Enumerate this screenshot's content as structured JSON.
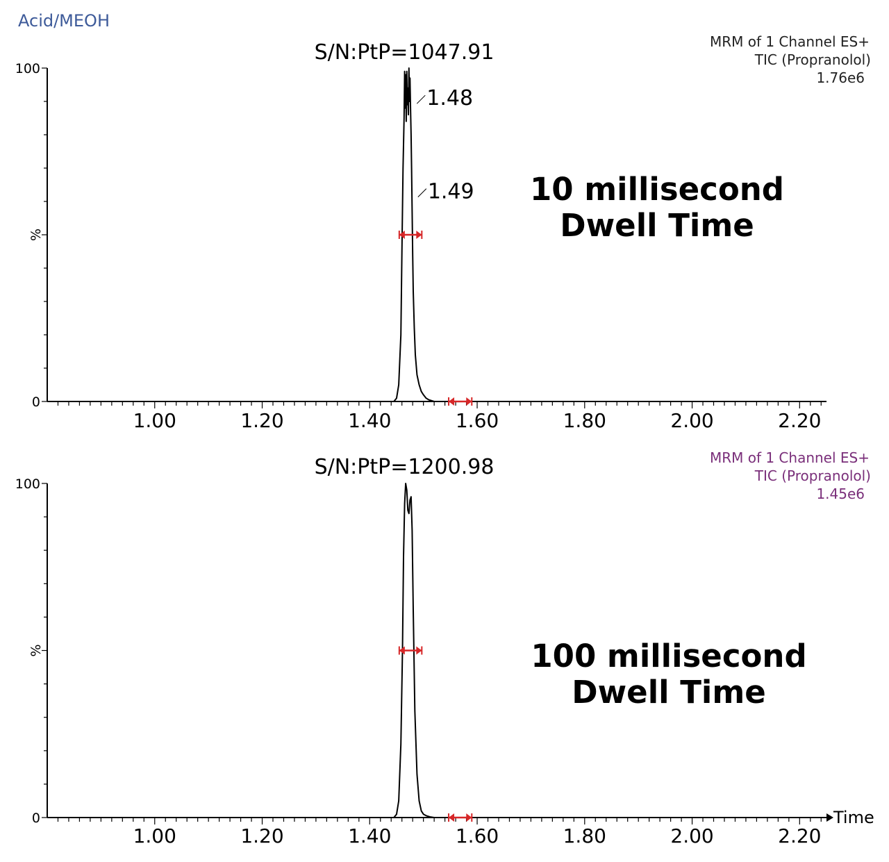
{
  "title": "Acid/MEOH",
  "x_axis_label": "Time",
  "colors": {
    "marker": "#d62728",
    "info_top": "#222222",
    "info_bottom": "#7a2f7a",
    "title": "#3d5a99"
  },
  "chart_data": [
    {
      "type": "line",
      "xlim": [
        0.8,
        2.25
      ],
      "ylim": [
        0,
        100
      ],
      "x_ticks": [
        "1.00",
        "1.20",
        "1.40",
        "1.60",
        "1.80",
        "2.00",
        "2.20"
      ],
      "y_ticks": [
        "0",
        "100"
      ],
      "ylabel": "%",
      "signal_to_noise": "S/N:PtP=1047.91",
      "info_lines": [
        "MRM of 1 Channel ES+",
        "TIC (Propranolol)",
        "1.76e6"
      ],
      "annotation": [
        "10 millisecond",
        "Dwell Time"
      ],
      "peak_labels": [
        {
          "text": "1.48",
          "x": 1.484,
          "y": 91
        },
        {
          "text": "1.49",
          "x": 1.486,
          "y": 63
        }
      ],
      "width_markers": [
        {
          "x1": 1.455,
          "x2": 1.497,
          "y": 50
        },
        {
          "x1": 1.547,
          "x2": 1.59,
          "y": 0
        }
      ],
      "series": [
        {
          "x": [
            0.8,
            1.445,
            1.45,
            1.454,
            1.458,
            1.46,
            1.462,
            1.464,
            1.465,
            1.466,
            1.467,
            1.468,
            1.469,
            1.47,
            1.471,
            1.472,
            1.473,
            1.474,
            1.475,
            1.476,
            1.477,
            1.478,
            1.479,
            1.48,
            1.481,
            1.483,
            1.485,
            1.488,
            1.492,
            1.496,
            1.5,
            1.505,
            1.51,
            1.52,
            2.25
          ],
          "y": [
            0,
            0,
            1,
            5,
            20,
            45,
            70,
            85,
            99,
            88,
            98,
            84,
            99,
            89,
            94,
            86,
            100,
            90,
            97,
            88,
            80,
            70,
            57,
            44,
            33,
            22,
            14,
            8,
            5,
            3,
            2,
            1,
            0.5,
            0,
            0
          ]
        }
      ]
    },
    {
      "type": "line",
      "xlim": [
        0.8,
        2.25
      ],
      "ylim": [
        0,
        100
      ],
      "x_ticks": [
        "1.00",
        "1.20",
        "1.40",
        "1.60",
        "1.80",
        "2.00",
        "2.20"
      ],
      "y_ticks": [
        "0",
        "100"
      ],
      "ylabel": "%",
      "signal_to_noise": "S/N:PtP=1200.98",
      "info_lines": [
        "MRM of 1 Channel ES+",
        "TIC (Propranolol)",
        "1.45e6"
      ],
      "annotation": [
        "100 millisecond",
        "Dwell Time"
      ],
      "peak_labels": [],
      "width_markers": [
        {
          "x1": 1.455,
          "x2": 1.497,
          "y": 50
        },
        {
          "x1": 1.547,
          "x2": 1.59,
          "y": 0
        }
      ],
      "series": [
        {
          "x": [
            0.8,
            1.445,
            1.45,
            1.454,
            1.458,
            1.461,
            1.463,
            1.465,
            1.467,
            1.469,
            1.471,
            1.473,
            1.475,
            1.477,
            1.479,
            1.481,
            1.484,
            1.488,
            1.492,
            1.496,
            1.5,
            1.506,
            1.512,
            1.52,
            2.25
          ],
          "y": [
            0,
            0,
            1,
            5,
            22,
            50,
            78,
            94,
            100,
            98,
            92,
            91,
            95,
            96,
            86,
            62,
            32,
            13,
            5,
            2,
            1,
            0.5,
            0.2,
            0,
            0
          ]
        }
      ]
    }
  ]
}
